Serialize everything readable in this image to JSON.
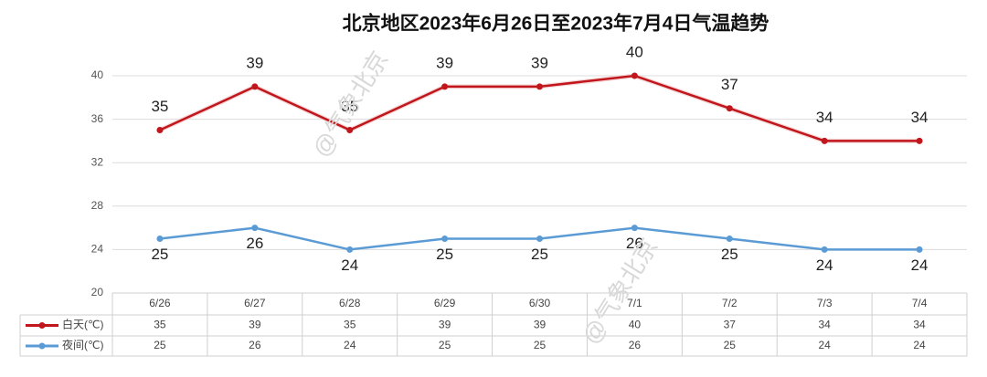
{
  "chart_data": {
    "type": "line",
    "title": "北京地区2023年6月26日至2023年7月4日气温趋势",
    "categories": [
      "6/26",
      "6/27",
      "6/28",
      "6/29",
      "6/30",
      "7/1",
      "7/2",
      "7/3",
      "7/4"
    ],
    "series": [
      {
        "name": "白天(℃)",
        "color": "#c0161c",
        "values": [
          35,
          39,
          35,
          39,
          39,
          40,
          37,
          34,
          34
        ]
      },
      {
        "name": "夜间(℃)",
        "color": "#5b9bd5",
        "values": [
          25,
          26,
          24,
          25,
          25,
          26,
          25,
          24,
          24
        ]
      }
    ],
    "ylim": [
      20,
      40
    ],
    "yticks": [
      20,
      24,
      28,
      32,
      36,
      40
    ],
    "grid": true,
    "watermark": "@气象北京"
  }
}
